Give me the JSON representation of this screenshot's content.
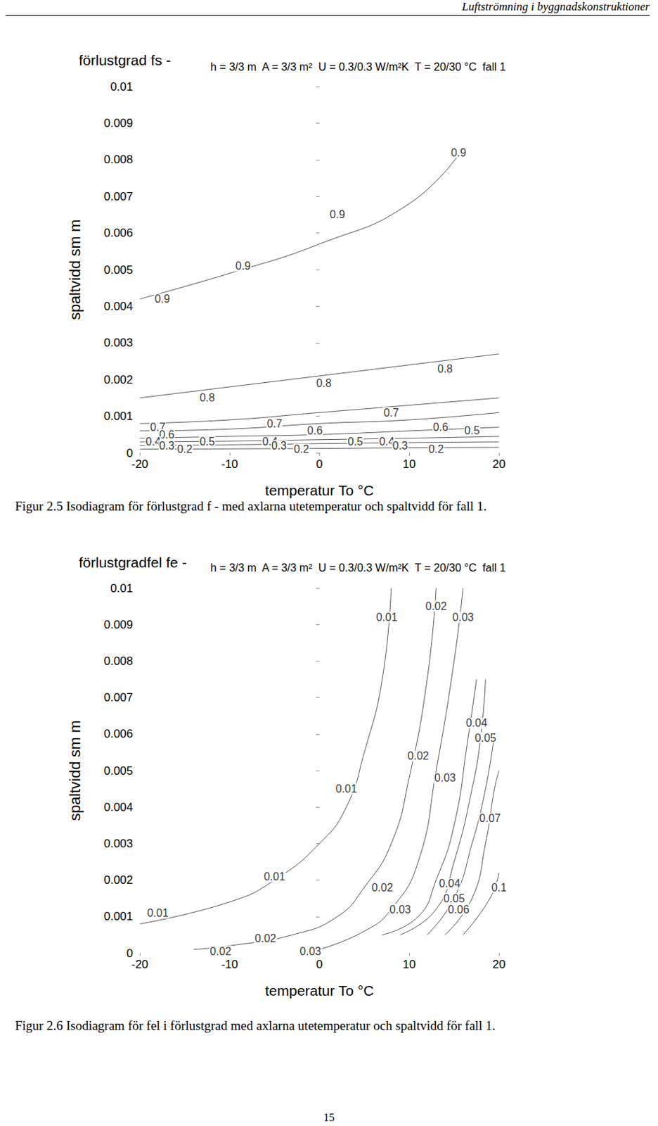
{
  "header": "Luftströmning i byggnadskonstruktioner",
  "chart_data": [
    {
      "type": "line",
      "title": "förlustgrad fs -",
      "subtitle": "h = 3/3 m  A = 3/3 m²  U = 0.3/0.3 W/m²K  T = 20/30 °C  fall 1",
      "x_label": "temperatur To °C",
      "y_label": "spaltvidd sm m",
      "xlim": [
        -20,
        20
      ],
      "xticks": [
        -20,
        -10,
        0,
        10,
        20
      ],
      "ylim": [
        0,
        0.01
      ],
      "yticks": [
        0,
        0.001,
        0.002,
        0.003,
        0.004,
        0.005,
        0.006,
        0.007,
        0.008,
        0.009,
        0.01
      ],
      "grid": false,
      "color": "#555555",
      "series": [
        {
          "name": "0.9",
          "x": [
            -20,
            -10,
            0,
            10,
            16
          ],
          "values": [
            0.0042,
            0.0049,
            0.0057,
            0.0068,
            0.0083
          ],
          "label_points": [
            [
              -17.5,
              0.0042
            ],
            [
              -8.5,
              0.0051
            ],
            [
              2,
              0.0065
            ],
            [
              15.5,
              0.0082
            ]
          ]
        },
        {
          "name": "0.8",
          "x": [
            -20,
            -10,
            0,
            10,
            20
          ],
          "values": [
            0.0015,
            0.0018,
            0.0021,
            0.0024,
            0.0027
          ],
          "label_points": [
            [
              -12.5,
              0.0015
            ],
            [
              0.5,
              0.0019
            ],
            [
              14,
              0.0023
            ]
          ]
        },
        {
          "name": "0.7",
          "x": [
            -20,
            -10,
            0,
            10,
            20
          ],
          "values": [
            0.0008,
            0.0009,
            0.0011,
            0.0013,
            0.0015
          ],
          "label_points": [
            [
              -18,
              0.0007
            ],
            [
              -5,
              0.0008
            ],
            [
              8,
              0.0011
            ]
          ]
        },
        {
          "name": "0.6",
          "x": [
            -20,
            -10,
            0,
            10,
            20
          ],
          "values": [
            0.0006,
            0.00065,
            0.0008,
            0.0009,
            0.0011
          ],
          "label_points": [
            [
              -17,
              0.0005
            ],
            [
              -0.5,
              0.0006
            ],
            [
              13.5,
              0.0007
            ]
          ]
        },
        {
          "name": "0.5",
          "x": [
            -20,
            -10,
            0,
            10,
            20
          ],
          "values": [
            0.0004,
            0.00045,
            0.0005,
            0.0006,
            0.0007
          ],
          "label_points": [
            [
              -12.5,
              0.0003
            ],
            [
              4,
              0.0003
            ],
            [
              17,
              0.0006
            ]
          ]
        },
        {
          "name": "0.4",
          "x": [
            -20,
            -10,
            0,
            10,
            20
          ],
          "values": [
            0.0003,
            0.00032,
            0.00036,
            0.0004,
            0.00045
          ],
          "label_points": [
            [
              -18.5,
              0.0003
            ],
            [
              -5.5,
              0.0003
            ],
            [
              7.5,
              0.0003
            ]
          ]
        },
        {
          "name": "0.3",
          "x": [
            -20,
            -10,
            0,
            10,
            20
          ],
          "values": [
            0.0002,
            0.00022,
            0.00025,
            0.00028,
            0.0003
          ],
          "label_points": [
            [
              -17,
              0.0002
            ],
            [
              -4.5,
              0.0002
            ],
            [
              9,
              0.0002
            ]
          ]
        },
        {
          "name": "0.2",
          "x": [
            -20,
            -10,
            0,
            10,
            20
          ],
          "values": [
            0.0001,
            0.00011,
            0.00012,
            0.00014,
            0.00015
          ],
          "label_points": [
            [
              -15,
              0.0001
            ],
            [
              -2,
              0.0001
            ],
            [
              13,
              0.0001
            ]
          ]
        }
      ]
    },
    {
      "type": "line",
      "title": "förlustgradfel fe -",
      "subtitle": "h = 3/3 m  A = 3/3 m²  U = 0.3/0.3 W/m²K  T = 20/30 °C  fall 1",
      "x_label": "temperatur To °C",
      "y_label": "spaltvidd sm m",
      "xlim": [
        -20,
        20
      ],
      "xticks": [
        -20,
        -10,
        0,
        10,
        20
      ],
      "ylim": [
        0,
        0.01
      ],
      "yticks": [
        0,
        0.001,
        0.002,
        0.003,
        0.004,
        0.005,
        0.006,
        0.007,
        0.008,
        0.009,
        0.01
      ],
      "grid": false,
      "color": "#555555",
      "series": [
        {
          "name": "0.01",
          "x": [
            -20,
            -10,
            -5,
            0,
            3,
            5,
            7,
            8
          ],
          "values": [
            0.0008,
            0.0014,
            0.002,
            0.003,
            0.004,
            0.0055,
            0.0075,
            0.01
          ],
          "label_points": [
            [
              -18,
              0.0011
            ],
            [
              -5,
              0.0021
            ],
            [
              3,
              0.0045
            ],
            [
              7.5,
              0.0092
            ]
          ]
        },
        {
          "name": "0.02",
          "x": [
            -14,
            -10,
            -3,
            2,
            5,
            8,
            10,
            12,
            13
          ],
          "values": [
            0.0001,
            0.0002,
            0.0005,
            0.001,
            0.0018,
            0.003,
            0.0048,
            0.0075,
            0.01
          ],
          "label_points": [
            [
              -11,
              5e-05
            ],
            [
              -6,
              0.0004
            ],
            [
              7,
              0.0018
            ],
            [
              11,
              0.0054
            ],
            [
              13,
              0.0095
            ]
          ]
        },
        {
          "name": "0.03",
          "x": [
            0,
            5,
            8,
            11,
            13,
            15,
            16
          ],
          "values": [
            0.0001,
            0.0006,
            0.0012,
            0.0025,
            0.005,
            0.008,
            0.01
          ],
          "label_points": [
            [
              -1,
              5e-05
            ],
            [
              9,
              0.0012
            ],
            [
              14,
              0.0048
            ],
            [
              16,
              0.0092
            ]
          ]
        },
        {
          "name": "0.04",
          "x": [
            7,
            11,
            13,
            15,
            16.5,
            17.5
          ],
          "values": [
            0.0005,
            0.001,
            0.002,
            0.0035,
            0.0058,
            0.0075
          ],
          "label_points": [
            [
              14.5,
              0.0019
            ],
            [
              17.5,
              0.0063
            ]
          ]
        },
        {
          "name": "0.05",
          "x": [
            9,
            13,
            15,
            17,
            18,
            18.5
          ],
          "values": [
            0.0005,
            0.0012,
            0.0025,
            0.0045,
            0.006,
            0.0075
          ],
          "label_points": [
            [
              15,
              0.0015
            ],
            [
              18.5,
              0.0059
            ]
          ]
        },
        {
          "name": "0.06",
          "x": [
            12,
            15,
            17,
            18.5,
            19.5
          ],
          "values": [
            0.0005,
            0.0015,
            0.003,
            0.0045,
            0.006
          ],
          "label_points": [
            [
              15.5,
              0.0012
            ]
          ]
        },
        {
          "name": "0.07",
          "x": [
            14,
            17,
            18.5,
            19.5,
            20
          ],
          "values": [
            0.0005,
            0.0015,
            0.003,
            0.0045,
            0.005
          ],
          "label_points": [
            [
              19,
              0.0037
            ]
          ]
        },
        {
          "name": "0.1",
          "x": [
            16,
            19,
            20
          ],
          "values": [
            0.0005,
            0.0015,
            0.0022
          ],
          "label_points": [
            [
              20,
              0.0018
            ]
          ]
        }
      ]
    }
  ],
  "captions": [
    "Figur 2.5 Isodiagram för förlustgrad f - med axlarna utetemperatur och spaltvidd för fall 1.",
    "Figur 2.6 Isodiagram för fel i förlustgrad med axlarna utetemperatur och spaltvidd för fall 1."
  ],
  "page_number": "15"
}
